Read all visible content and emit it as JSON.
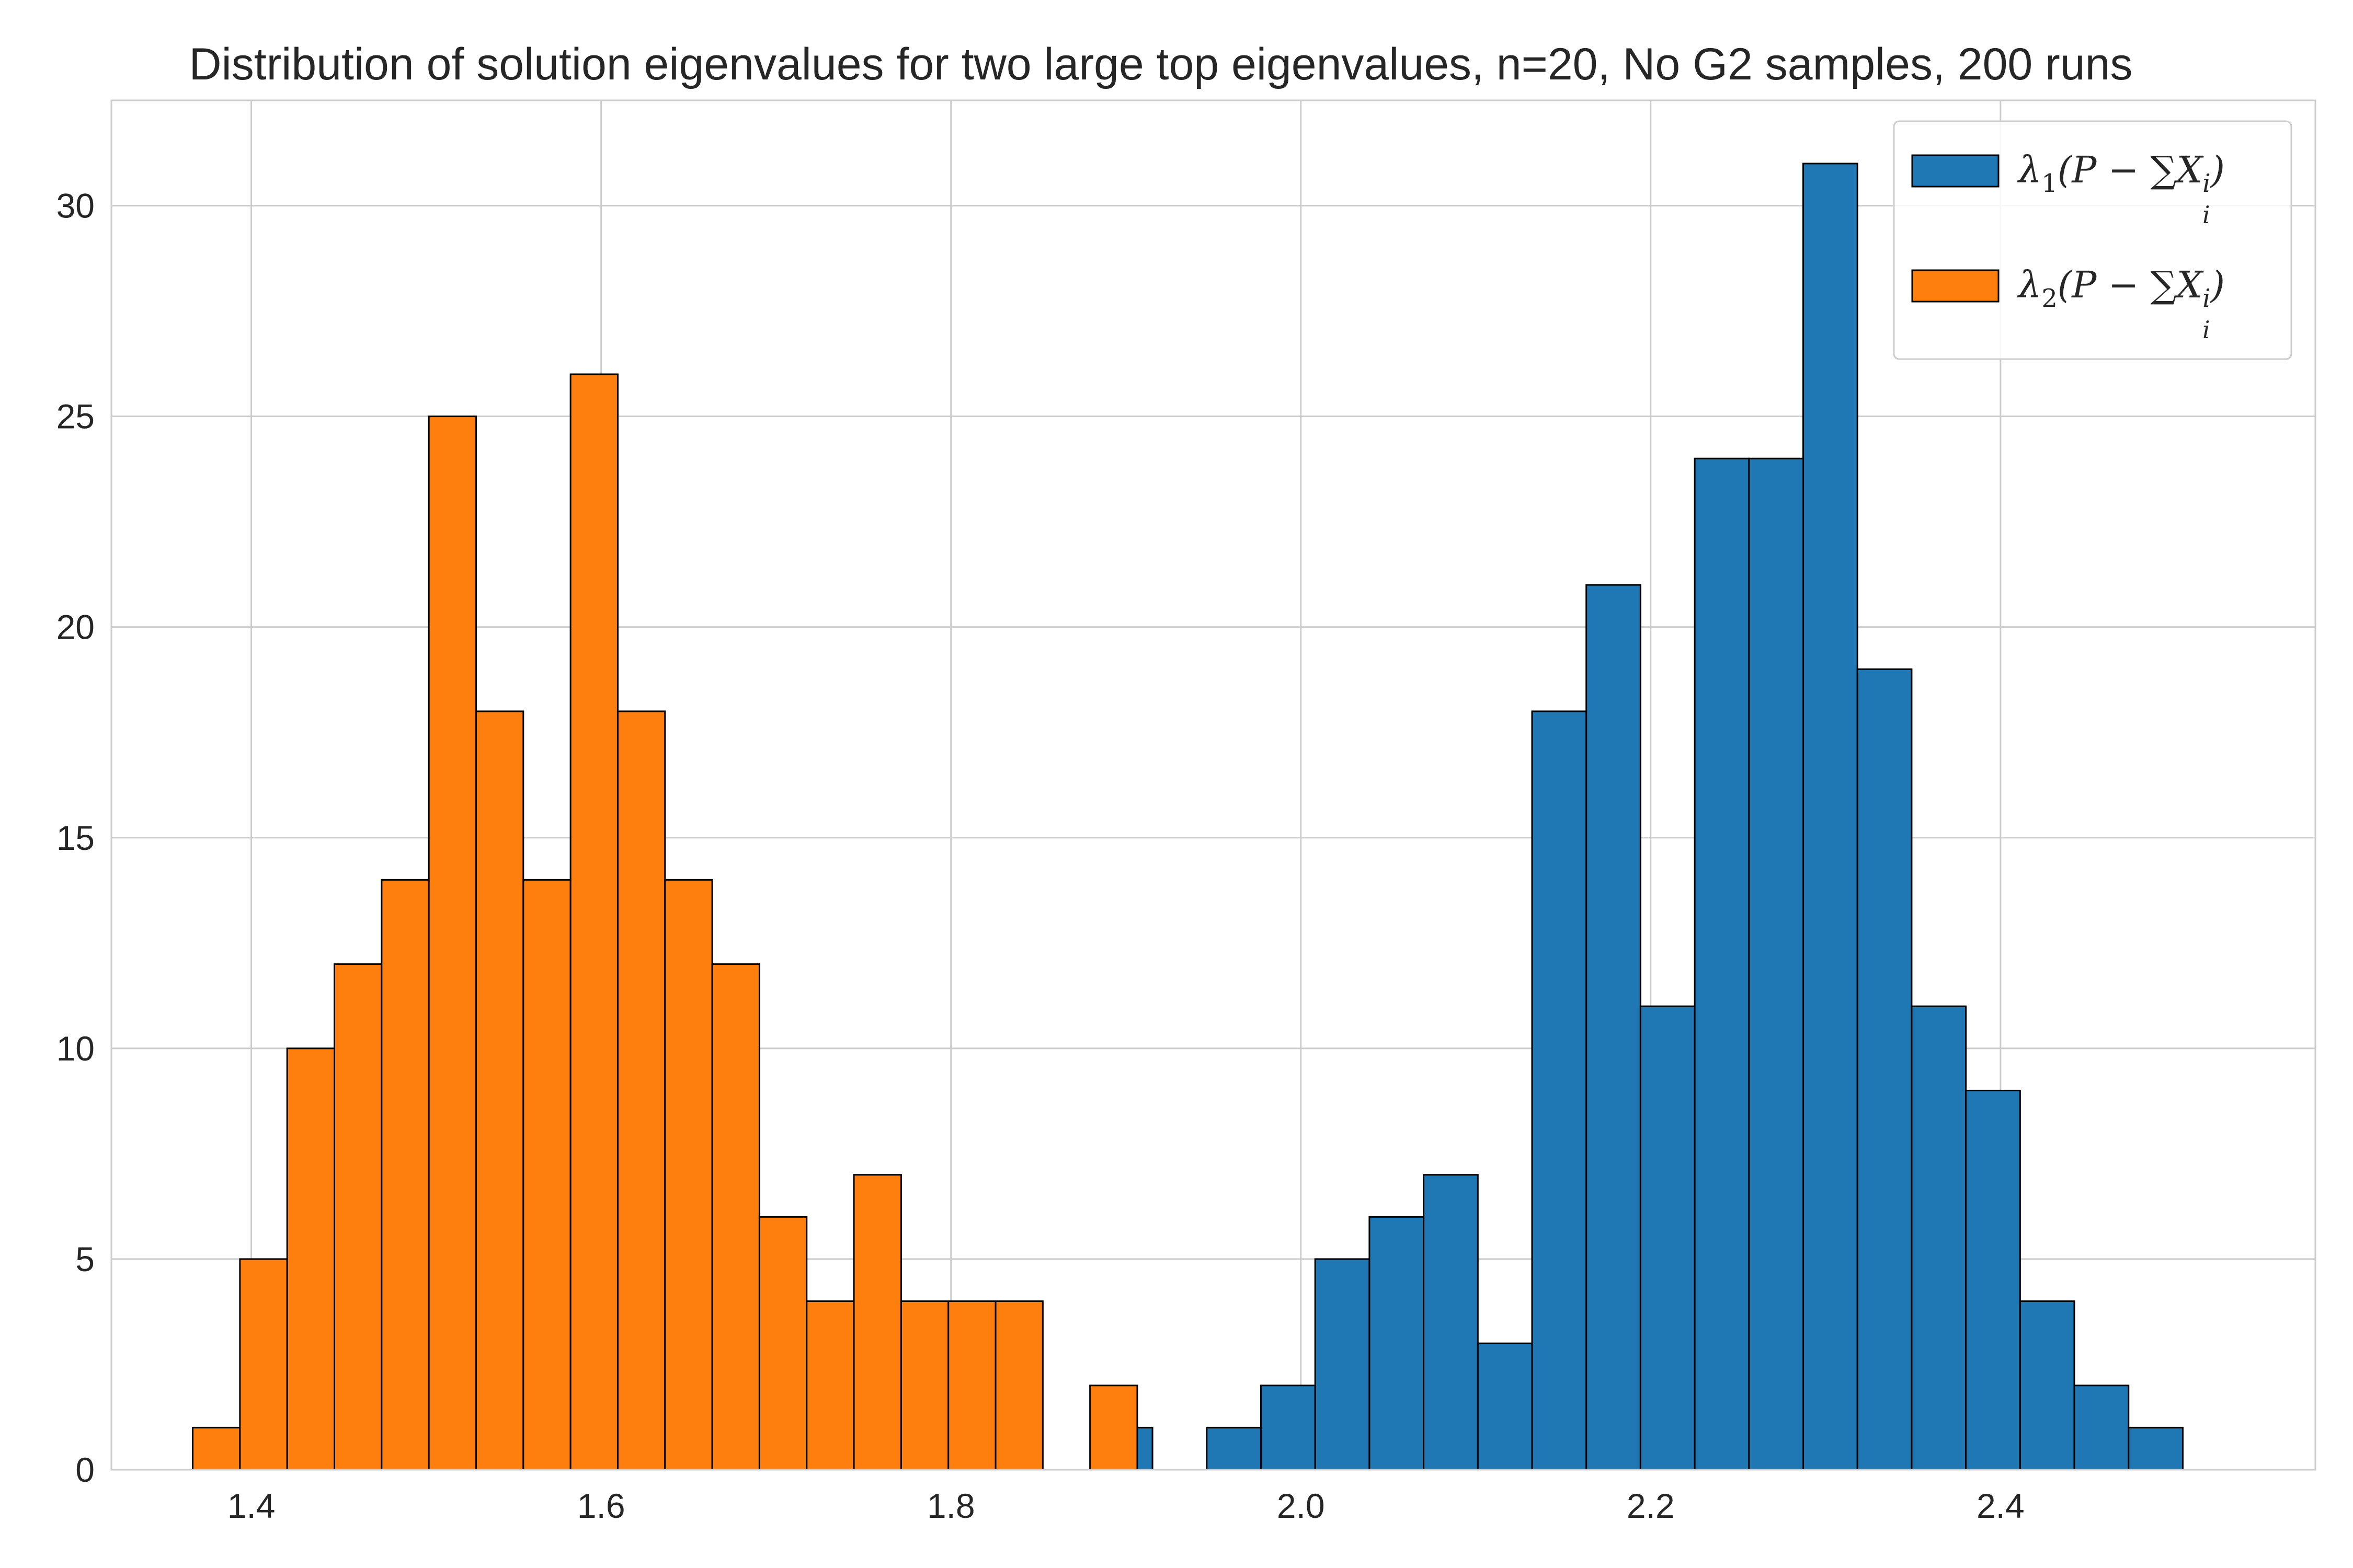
{
  "chart_data": {
    "type": "bar",
    "title": "Distribution of solution eigenvalues for two large top eigenvalues, n=20, No G2 samples, 200 runs",
    "xlabel": "",
    "ylabel": "",
    "xlim": [
      1.32,
      2.58
    ],
    "ylim": [
      0,
      32.5
    ],
    "x_ticks": [
      {
        "value": 1.4,
        "label": "1.4"
      },
      {
        "value": 1.6,
        "label": "1.6"
      },
      {
        "value": 1.8,
        "label": "1.8"
      },
      {
        "value": 2.0,
        "label": "2.0"
      },
      {
        "value": 2.2,
        "label": "2.2"
      },
      {
        "value": 2.4,
        "label": "2.4"
      }
    ],
    "y_ticks": [
      {
        "value": 0,
        "label": "0"
      },
      {
        "value": 5,
        "label": "5"
      },
      {
        "value": 10,
        "label": "10"
      },
      {
        "value": 15,
        "label": "15"
      },
      {
        "value": 20,
        "label": "20"
      },
      {
        "value": 25,
        "label": "25"
      },
      {
        "value": 30,
        "label": "30"
      }
    ],
    "grid": true,
    "legend_position": "top-right",
    "series": [
      {
        "name": "λ1(P − ∑i Xi)",
        "legend": {
          "lambda": "λ",
          "index": "1",
          "expr": "(P − ∑X",
          "sub_sum": "i",
          "sub_x": "i",
          "close": ")"
        },
        "color": "#1f77b4",
        "bins": [
          {
            "x0": 1.8962,
            "x1": 1.9152,
            "count": 1
          },
          {
            "x0": 1.9462,
            "x1": 1.9772,
            "count": 1
          },
          {
            "x0": 1.9772,
            "x1": 2.0082,
            "count": 2
          },
          {
            "x0": 2.0082,
            "x1": 2.0392,
            "count": 5
          },
          {
            "x0": 2.0392,
            "x1": 2.0702,
            "count": 6
          },
          {
            "x0": 2.0702,
            "x1": 2.1012,
            "count": 7
          },
          {
            "x0": 2.1012,
            "x1": 2.1322,
            "count": 3
          },
          {
            "x0": 2.1322,
            "x1": 2.1632,
            "count": 18
          },
          {
            "x0": 2.1632,
            "x1": 2.1942,
            "count": 21
          },
          {
            "x0": 2.1942,
            "x1": 2.2252,
            "count": 11
          },
          {
            "x0": 2.2252,
            "x1": 2.2562,
            "count": 24
          },
          {
            "x0": 2.2562,
            "x1": 2.2872,
            "count": 24
          },
          {
            "x0": 2.2872,
            "x1": 2.3182,
            "count": 31
          },
          {
            "x0": 2.3182,
            "x1": 2.3492,
            "count": 19
          },
          {
            "x0": 2.3492,
            "x1": 2.3802,
            "count": 11
          },
          {
            "x0": 2.3802,
            "x1": 2.4112,
            "count": 9
          },
          {
            "x0": 2.4112,
            "x1": 2.4422,
            "count": 4
          },
          {
            "x0": 2.4422,
            "x1": 2.4732,
            "count": 2
          },
          {
            "x0": 2.4732,
            "x1": 2.5042,
            "count": 1
          }
        ]
      },
      {
        "name": "λ2(P − ∑i Xi)",
        "legend": {
          "lambda": "λ",
          "index": "2",
          "expr": "(P − ∑X",
          "sub_sum": "i",
          "sub_x": "i",
          "close": ")"
        },
        "color": "#ff7f0e",
        "bins": [
          {
            "x0": 1.3665,
            "x1": 1.3935,
            "count": 1
          },
          {
            "x0": 1.3935,
            "x1": 1.4205,
            "count": 5
          },
          {
            "x0": 1.4205,
            "x1": 1.4475,
            "count": 10
          },
          {
            "x0": 1.4475,
            "x1": 1.4745,
            "count": 12
          },
          {
            "x0": 1.4745,
            "x1": 1.5015,
            "count": 14
          },
          {
            "x0": 1.5015,
            "x1": 1.5285,
            "count": 25
          },
          {
            "x0": 1.5285,
            "x1": 1.5555,
            "count": 18
          },
          {
            "x0": 1.5555,
            "x1": 1.5825,
            "count": 14
          },
          {
            "x0": 1.5825,
            "x1": 1.6095,
            "count": 26
          },
          {
            "x0": 1.6095,
            "x1": 1.6365,
            "count": 18
          },
          {
            "x0": 1.6365,
            "x1": 1.6635,
            "count": 14
          },
          {
            "x0": 1.6635,
            "x1": 1.6905,
            "count": 12
          },
          {
            "x0": 1.6905,
            "x1": 1.7175,
            "count": 6
          },
          {
            "x0": 1.7175,
            "x1": 1.7445,
            "count": 4
          },
          {
            "x0": 1.7445,
            "x1": 1.7715,
            "count": 7
          },
          {
            "x0": 1.7715,
            "x1": 1.7985,
            "count": 4
          },
          {
            "x0": 1.7985,
            "x1": 1.8255,
            "count": 4
          },
          {
            "x0": 1.8255,
            "x1": 1.8525,
            "count": 4
          },
          {
            "x0": 1.8795,
            "x1": 1.9065,
            "count": 2
          }
        ]
      }
    ]
  }
}
